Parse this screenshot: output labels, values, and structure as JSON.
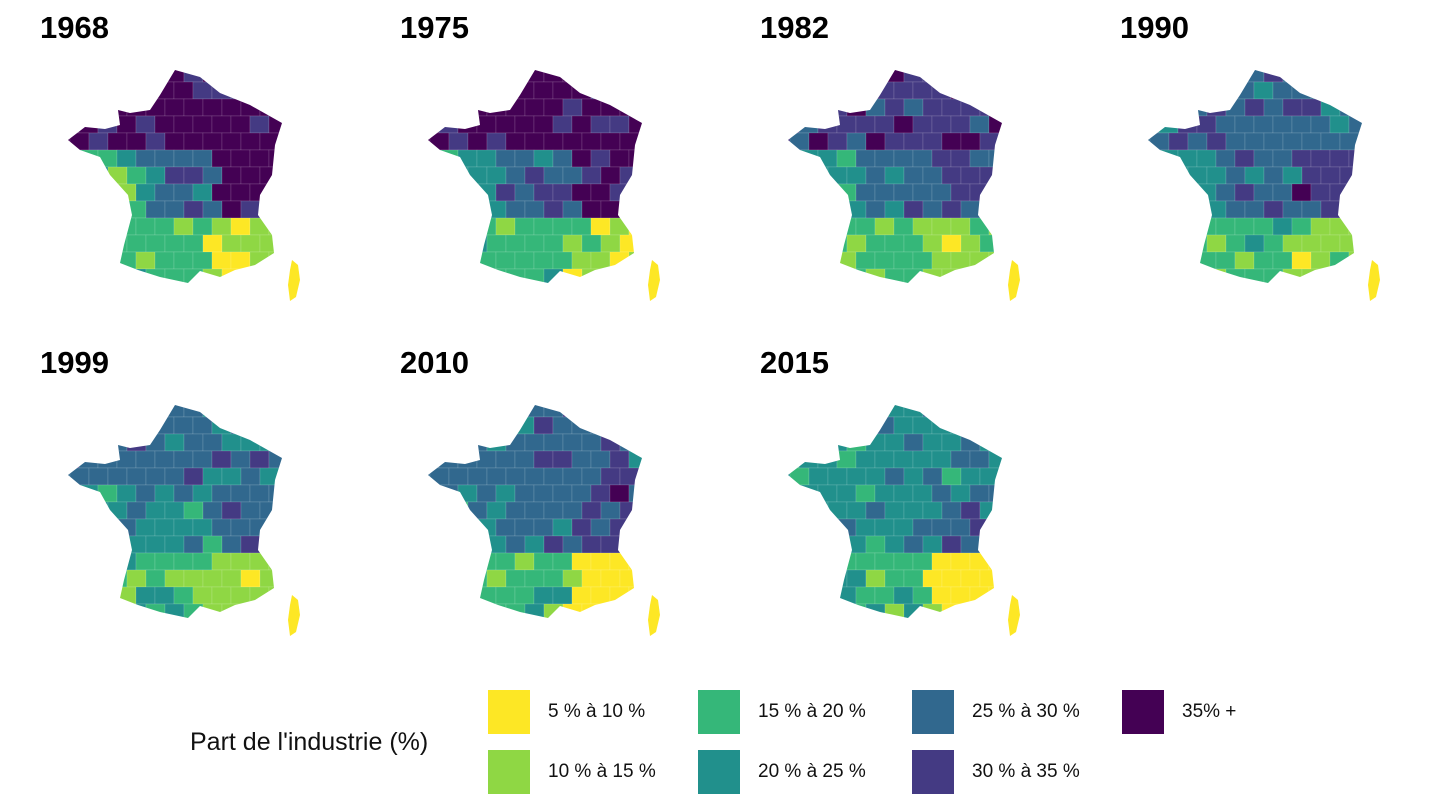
{
  "palette": [
    "#FDE725",
    "#8FD744",
    "#35B779",
    "#21908C",
    "#31688E",
    "#443A83",
    "#440154"
  ],
  "panels": [
    {
      "year": "1968",
      "regions": {
        "north": 6,
        "east": 6,
        "center": 4,
        "west": 2,
        "south": 2,
        "southeast": 1,
        "corsica": 0
      }
    },
    {
      "year": "1975",
      "regions": {
        "north": 6,
        "east": 6,
        "center": 4,
        "west": 3,
        "south": 2,
        "southeast": 1,
        "corsica": 0
      }
    },
    {
      "year": "1982",
      "regions": {
        "north": 5,
        "east": 5,
        "center": 4,
        "west": 3,
        "south": 2,
        "southeast": 1,
        "corsica": 0
      }
    },
    {
      "year": "1990",
      "regions": {
        "north": 4,
        "east": 5,
        "center": 4,
        "west": 3,
        "south": 2,
        "southeast": 1,
        "corsica": 0
      }
    },
    {
      "year": "1999",
      "regions": {
        "north": 4,
        "east": 4,
        "center": 3,
        "west": 3,
        "south": 2,
        "southeast": 1,
        "corsica": 0
      }
    },
    {
      "year": "2010",
      "regions": {
        "north": 4,
        "east": 5,
        "center": 4,
        "west": 3,
        "south": 2,
        "southeast": 0,
        "corsica": 0
      }
    },
    {
      "year": "2015",
      "regions": {
        "north": 3,
        "east": 4,
        "center": 3,
        "west": 3,
        "south": 2,
        "southeast": 0,
        "corsica": 0
      }
    }
  ],
  "legend": {
    "title": "Part de l'industrie (%)",
    "items": [
      {
        "label": "5 % à 10 %",
        "color": "#FDE725"
      },
      {
        "label": "10 % à 15 %",
        "color": "#8FD744"
      },
      {
        "label": "15 % à 20 %",
        "color": "#35B779"
      },
      {
        "label": "20 % à 25 %",
        "color": "#21908C"
      },
      {
        "label": "25 % à 30 %",
        "color": "#31688E"
      },
      {
        "label": "30 % à 35 %",
        "color": "#443A83"
      },
      {
        "label": "35% +",
        "color": "#440154"
      }
    ]
  }
}
